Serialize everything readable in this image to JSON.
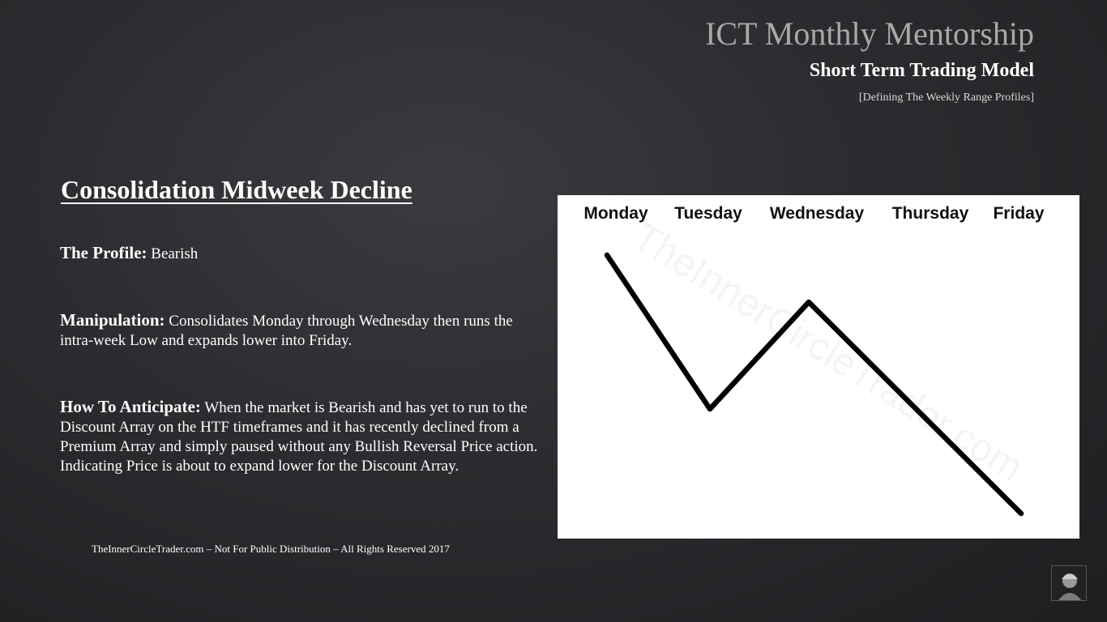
{
  "header": {
    "title": "ICT Monthly Mentorship",
    "subtitle": "Short Term Trading Model",
    "subsubtitle": "[Defining The Weekly Range Profiles]"
  },
  "content": {
    "heading": "Consolidation Midweek Decline",
    "profile_label": "The Profile:",
    "profile_text": "Bearish",
    "manipulation_label": "Manipulation:",
    "manipulation_text": "Consolidates Monday through Wednesday then runs the intra-week Low and expands lower into Friday.",
    "anticipate_label": "How To Anticipate:",
    "anticipate_text": "When the market is Bearish and has yet to run to the Discount Array on the HTF timeframes and it has recently declined from a Premium Array and simply paused without any Bullish Reversal Price action.  Indicating Price is about to expand lower for the Discount Array."
  },
  "footer": "TheInnerCircleTrader.com – Not For Public Distribution – All Rights Reserved 2017",
  "diagram": {
    "days": [
      "Monday",
      "Tuesday",
      "Wednesday",
      "Thursday",
      "Friday"
    ],
    "watermark": "TheInnerCircleTrader.com",
    "line_color": "#000000",
    "background": "#ffffff"
  },
  "avatar": {
    "icon": "presenter-avatar-icon"
  }
}
